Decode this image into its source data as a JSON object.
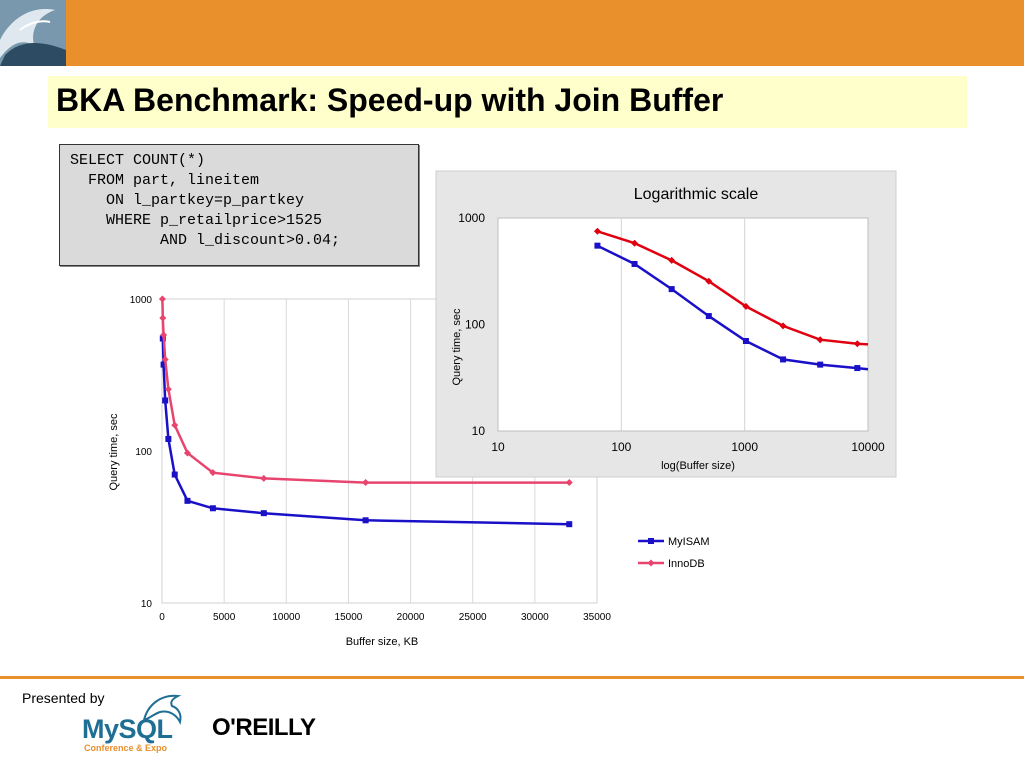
{
  "slide": {
    "title": "BKA Benchmark: Speed-up with Join Buffer",
    "sql_lines": [
      "SELECT COUNT(*)",
      "  FROM part, lineitem",
      "    ON l_partkey=p_partkey",
      "    WHERE p_retailprice>1525",
      "          AND l_discount>0.04;"
    ],
    "footer": {
      "presented_by": "Presented by",
      "mysql_logo": "MySQL",
      "mysql_sub": "Conference & Expo",
      "oreilly_logo": "O'REILLY"
    }
  },
  "colors": {
    "orange": "#e98f2c",
    "title_bg": "#ffffcc",
    "myisam": "#1a10c8",
    "innodb_main": "#e8456e",
    "innodb_inset": "#e00010"
  },
  "chart_data": [
    {
      "type": "line",
      "x_label": "Buffer size, KB",
      "y_label": "Query time, sec",
      "y_scale": "log",
      "ylim": [
        10,
        1000
      ],
      "xlim": [
        0,
        35000
      ],
      "x_ticks": [
        "0",
        "5000",
        "10000",
        "15000",
        "20000",
        "25000",
        "30000",
        "35000"
      ],
      "y_ticks": [
        "10",
        "100",
        "1000"
      ],
      "grid": "vertical",
      "legend": "right",
      "series": [
        {
          "name": "MyISAM",
          "x": [
            64,
            128,
            256,
            512,
            1024,
            2048,
            4096,
            8192,
            16384,
            32768
          ],
          "y": [
            550,
            370,
            215,
            120,
            70,
            47,
            42,
            39,
            35,
            33
          ]
        },
        {
          "name": "InnoDB",
          "x": [
            32,
            64,
            128,
            256,
            512,
            1024,
            2048,
            4096,
            8192,
            16384,
            32768
          ],
          "y": [
            1000,
            750,
            580,
            400,
            255,
            148,
            97,
            72,
            66,
            62,
            62
          ]
        }
      ]
    },
    {
      "type": "line",
      "title": "Logarithmic scale",
      "x_label": "log(Buffer size)",
      "y_label": "Query time, sec",
      "x_scale": "log",
      "y_scale": "log",
      "xlim": [
        10,
        10000
      ],
      "ylim": [
        10,
        1000
      ],
      "x_ticks": [
        "10",
        "100",
        "1000",
        "10000"
      ],
      "y_ticks": [
        "10",
        "100",
        "1000"
      ],
      "grid": "vertical",
      "series": [
        {
          "name": "MyISAM",
          "x": [
            64,
            128,
            256,
            512,
            1024,
            2048,
            4096,
            8192,
            10000
          ],
          "y": [
            550,
            370,
            215,
            120,
            70,
            47,
            42,
            39,
            38
          ]
        },
        {
          "name": "InnoDB",
          "x": [
            64,
            128,
            256,
            512,
            1024,
            2048,
            4096,
            8192,
            10000
          ],
          "y": [
            750,
            580,
            400,
            255,
            148,
            97,
            72,
            66,
            65
          ]
        }
      ]
    }
  ]
}
